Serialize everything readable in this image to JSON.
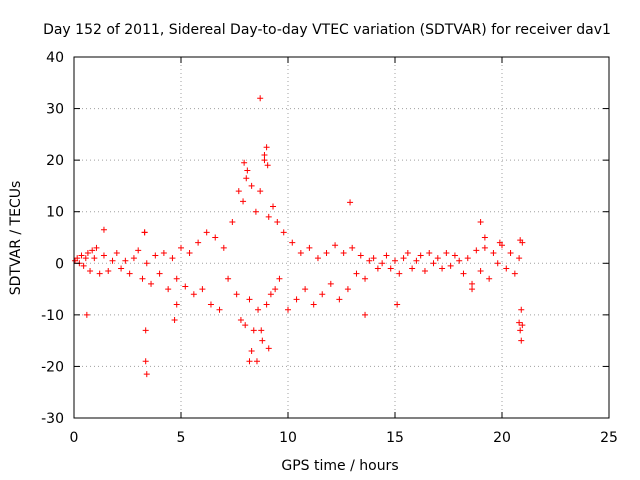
{
  "chart_data": {
    "type": "scatter",
    "title": "Day 152 of 2011, Sidereal Day-to-day VTEC variation (SDTVAR) for receiver dav1",
    "xlabel": "GPS time / hours",
    "ylabel": "SDTVAR / TECUs",
    "xlim": [
      0,
      25
    ],
    "ylim": [
      -30,
      40
    ],
    "x_ticks": [
      0,
      5,
      10,
      15,
      20,
      25
    ],
    "x_tick_labels": [
      "0",
      "5",
      "10",
      "15",
      "20",
      "25"
    ],
    "y_ticks": [
      -30,
      -20,
      -10,
      0,
      10,
      20,
      30,
      40
    ],
    "y_tick_labels": [
      "-30",
      "-20",
      "-10",
      "0",
      "10",
      "20",
      "30",
      "40"
    ],
    "grid": true,
    "marker": "plus",
    "series": [
      {
        "name": "SDTVAR",
        "color": "#ff0000",
        "x": [
          0.05,
          0.15,
          0.25,
          0.35,
          0.45,
          0.55,
          0.65,
          0.75,
          0.85,
          0.95,
          1.05,
          1.2,
          1.4,
          1.6,
          1.8,
          2.0,
          2.2,
          2.4,
          2.6,
          2.8,
          3.0,
          3.2,
          3.4,
          3.6,
          3.8,
          4.0,
          4.2,
          4.4,
          4.6,
          4.8,
          5.0,
          5.2,
          5.4,
          5.6,
          5.8,
          6.0,
          6.2,
          6.4,
          6.6,
          6.8,
          7.0,
          7.2,
          7.4,
          7.6,
          7.7,
          7.8,
          7.9,
          8.0,
          8.1,
          8.2,
          8.3,
          8.4,
          8.5,
          8.6,
          8.7,
          8.8,
          8.9,
          9.0,
          9.1,
          9.2,
          9.3,
          9.4,
          9.5,
          9.6,
          9.8,
          10.0,
          10.2,
          10.4,
          10.6,
          10.8,
          11.0,
          11.2,
          11.4,
          11.6,
          11.8,
          12.0,
          12.2,
          12.4,
          12.6,
          12.8,
          13.0,
          13.2,
          13.4,
          13.6,
          13.8,
          14.0,
          14.2,
          14.4,
          14.6,
          14.8,
          15.0,
          15.2,
          15.4,
          15.6,
          15.8,
          16.0,
          16.2,
          16.4,
          16.6,
          16.8,
          17.0,
          17.2,
          17.4,
          17.6,
          17.8,
          18.0,
          18.2,
          18.4,
          18.6,
          18.8,
          19.0,
          19.2,
          19.4,
          19.6,
          19.8,
          20.0,
          20.2,
          20.4,
          20.6,
          20.8,
          20.85,
          20.9,
          20.95,
          0.6,
          1.4,
          3.3,
          3.35,
          3.4,
          4.7,
          7.95,
          8.05,
          8.55,
          8.7,
          8.75,
          8.9,
          9.0,
          9.1,
          12.9,
          13.6,
          15.1,
          19.0,
          19.2,
          20.8,
          20.85,
          20.9,
          20.95,
          3.3,
          3.35,
          4.8,
          8.2,
          8.3,
          9.05,
          18.6,
          19.9
        ],
        "y": [
          0.5,
          1.0,
          0.0,
          1.5,
          -0.5,
          1.0,
          2.0,
          -1.5,
          2.5,
          1.0,
          3.0,
          -2.0,
          1.5,
          -1.5,
          0.5,
          2.0,
          -1.0,
          0.5,
          -2.0,
          1.0,
          2.5,
          -3.0,
          0.0,
          -4.0,
          1.5,
          -2.0,
          2.0,
          -5.0,
          1.0,
          -3.0,
          3.0,
          -4.5,
          2.0,
          -6.0,
          4.0,
          -5.0,
          6.0,
          -8.0,
          5.0,
          -9.0,
          3.0,
          -3.0,
          8.0,
          -6.0,
          14.0,
          -11.0,
          12.0,
          -12.0,
          18.0,
          -7.0,
          15.0,
          -13.0,
          10.0,
          -9.0,
          14.0,
          -15.0,
          20.0,
          -8.0,
          9.0,
          -6.0,
          11.0,
          -5.0,
          8.0,
          -3.0,
          6.0,
          -9.0,
          4.0,
          -7.0,
          2.0,
          -5.0,
          3.0,
          -8.0,
          1.0,
          -6.0,
          2.0,
          -4.0,
          3.5,
          -7.0,
          2.0,
          -5.0,
          3.0,
          -2.0,
          1.5,
          -3.0,
          0.5,
          1.0,
          -1.0,
          0.0,
          1.5,
          -1.0,
          0.5,
          -2.0,
          1.0,
          2.0,
          -1.0,
          0.5,
          1.5,
          -1.5,
          2.0,
          0.0,
          1.0,
          -1.0,
          2.0,
          -0.5,
          1.5,
          0.5,
          -2.0,
          1.0,
          -4.0,
          2.5,
          -1.5,
          3.0,
          -3.0,
          2.0,
          0.0,
          3.5,
          -1.0,
          2.0,
          -2.0,
          1.0,
          4.5,
          -9.0,
          -12.0,
          -10.0,
          6.5,
          6.0,
          -19.0,
          -21.5,
          -11.0,
          19.5,
          16.5,
          -19.0,
          32.0,
          -13.0,
          21.0,
          22.5,
          -16.5,
          11.8,
          -10.0,
          -8.0,
          8.0,
          5.0,
          -11.5,
          -13.0,
          -15.0,
          4.0,
          6.0,
          -13.0,
          -8.0,
          -19.0,
          -17.0,
          19.0,
          -5.0,
          4.0
        ]
      }
    ]
  }
}
